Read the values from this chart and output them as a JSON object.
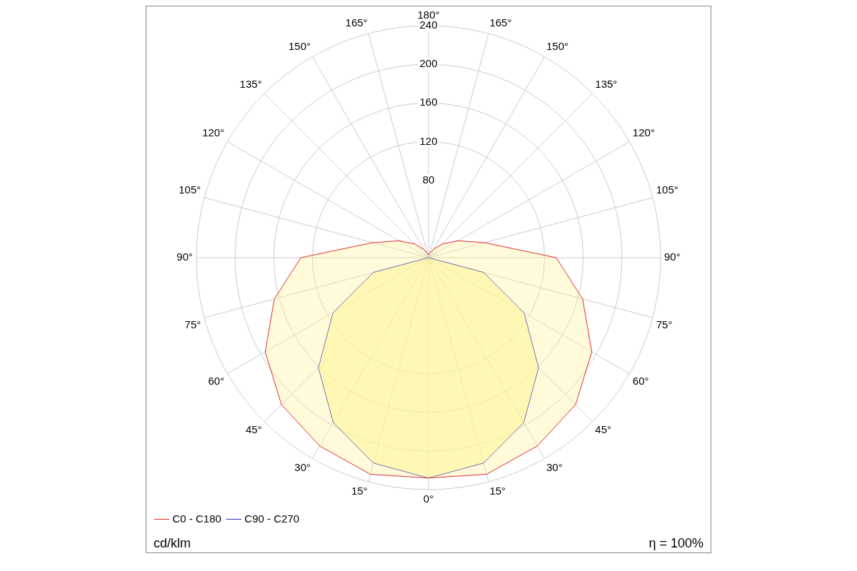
{
  "chart_data": {
    "type": "radar",
    "categories": [
      "180°",
      "165°",
      "150°",
      "135°",
      "120°",
      "105°",
      "90°",
      "75°",
      "60°",
      "45°",
      "30°",
      "15°",
      "0°",
      "15°",
      "30°",
      "45°",
      "60°",
      "75°",
      "90°",
      "105°",
      "120°",
      "135°",
      "150°",
      "165°"
    ],
    "series": [
      {
        "name": "C0 - C180",
        "color": "#e03030",
        "values": [
          3,
          5,
          10,
          20,
          35,
          60,
          132,
          165,
          195,
          215,
          225,
          232,
          228,
          232,
          225,
          215,
          195,
          165,
          132,
          60,
          35,
          20,
          10,
          5
        ]
      },
      {
        "name": "C90 - C270",
        "color": "#3030c0",
        "values": [
          0,
          0,
          0,
          0,
          0,
          0,
          0,
          59,
          114,
          161,
          197,
          220,
          228,
          220,
          197,
          161,
          114,
          59,
          0,
          0,
          0,
          0,
          0,
          0
        ]
      }
    ],
    "ylim": [
      0,
      240
    ],
    "yticks": [
      80,
      120,
      160,
      200,
      240
    ],
    "grid": true,
    "legend": "bottom left",
    "marker": "none",
    "line_style": "solid",
    "annotations": [
      "cd/klm",
      "η = 100%"
    ]
  }
}
